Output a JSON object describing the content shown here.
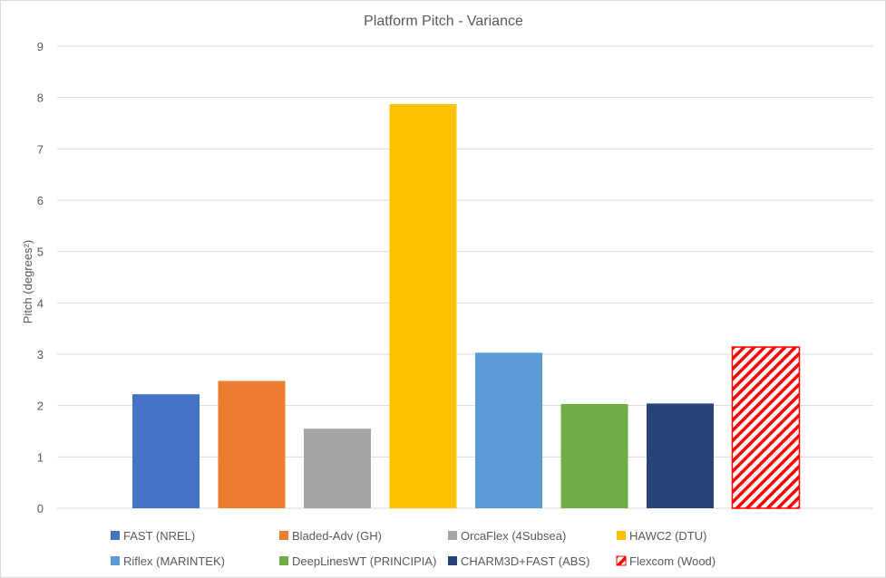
{
  "chart_data": {
    "type": "bar",
    "title": "Platform Pitch - Variance",
    "ylabel": "Pitch (degrees²)",
    "xlabel": "",
    "ylim": [
      0,
      9
    ],
    "yticks": [
      "0",
      "1",
      "2",
      "3",
      "4",
      "5",
      "6",
      "7",
      "8",
      "9"
    ],
    "grid": true,
    "legend_position": "bottom",
    "series": [
      {
        "name": "FAST (NREL)",
        "value": 2.22,
        "color": "#4472C4",
        "pattern": "solid"
      },
      {
        "name": "Bladed-Adv (GH)",
        "value": 2.48,
        "color": "#ED7D31",
        "pattern": "solid"
      },
      {
        "name": "OrcaFlex (4Subsea)",
        "value": 1.55,
        "color": "#A5A5A5",
        "pattern": "solid"
      },
      {
        "name": "HAWC2 (DTU)",
        "value": 7.87,
        "color": "#FFC000",
        "pattern": "solid"
      },
      {
        "name": "Riflex (MARINTEK)",
        "value": 3.03,
        "color": "#5B9BD5",
        "pattern": "solid"
      },
      {
        "name": "DeepLinesWT (PRINCIPIA)",
        "value": 2.03,
        "color": "#70AD47",
        "pattern": "solid"
      },
      {
        "name": "CHARM3D+FAST (ABS)",
        "value": 2.04,
        "color": "#264478",
        "pattern": "solid"
      },
      {
        "name": "Flexcom (Wood)",
        "value": 3.14,
        "color": "#FF0000",
        "pattern": "hatch"
      }
    ]
  }
}
